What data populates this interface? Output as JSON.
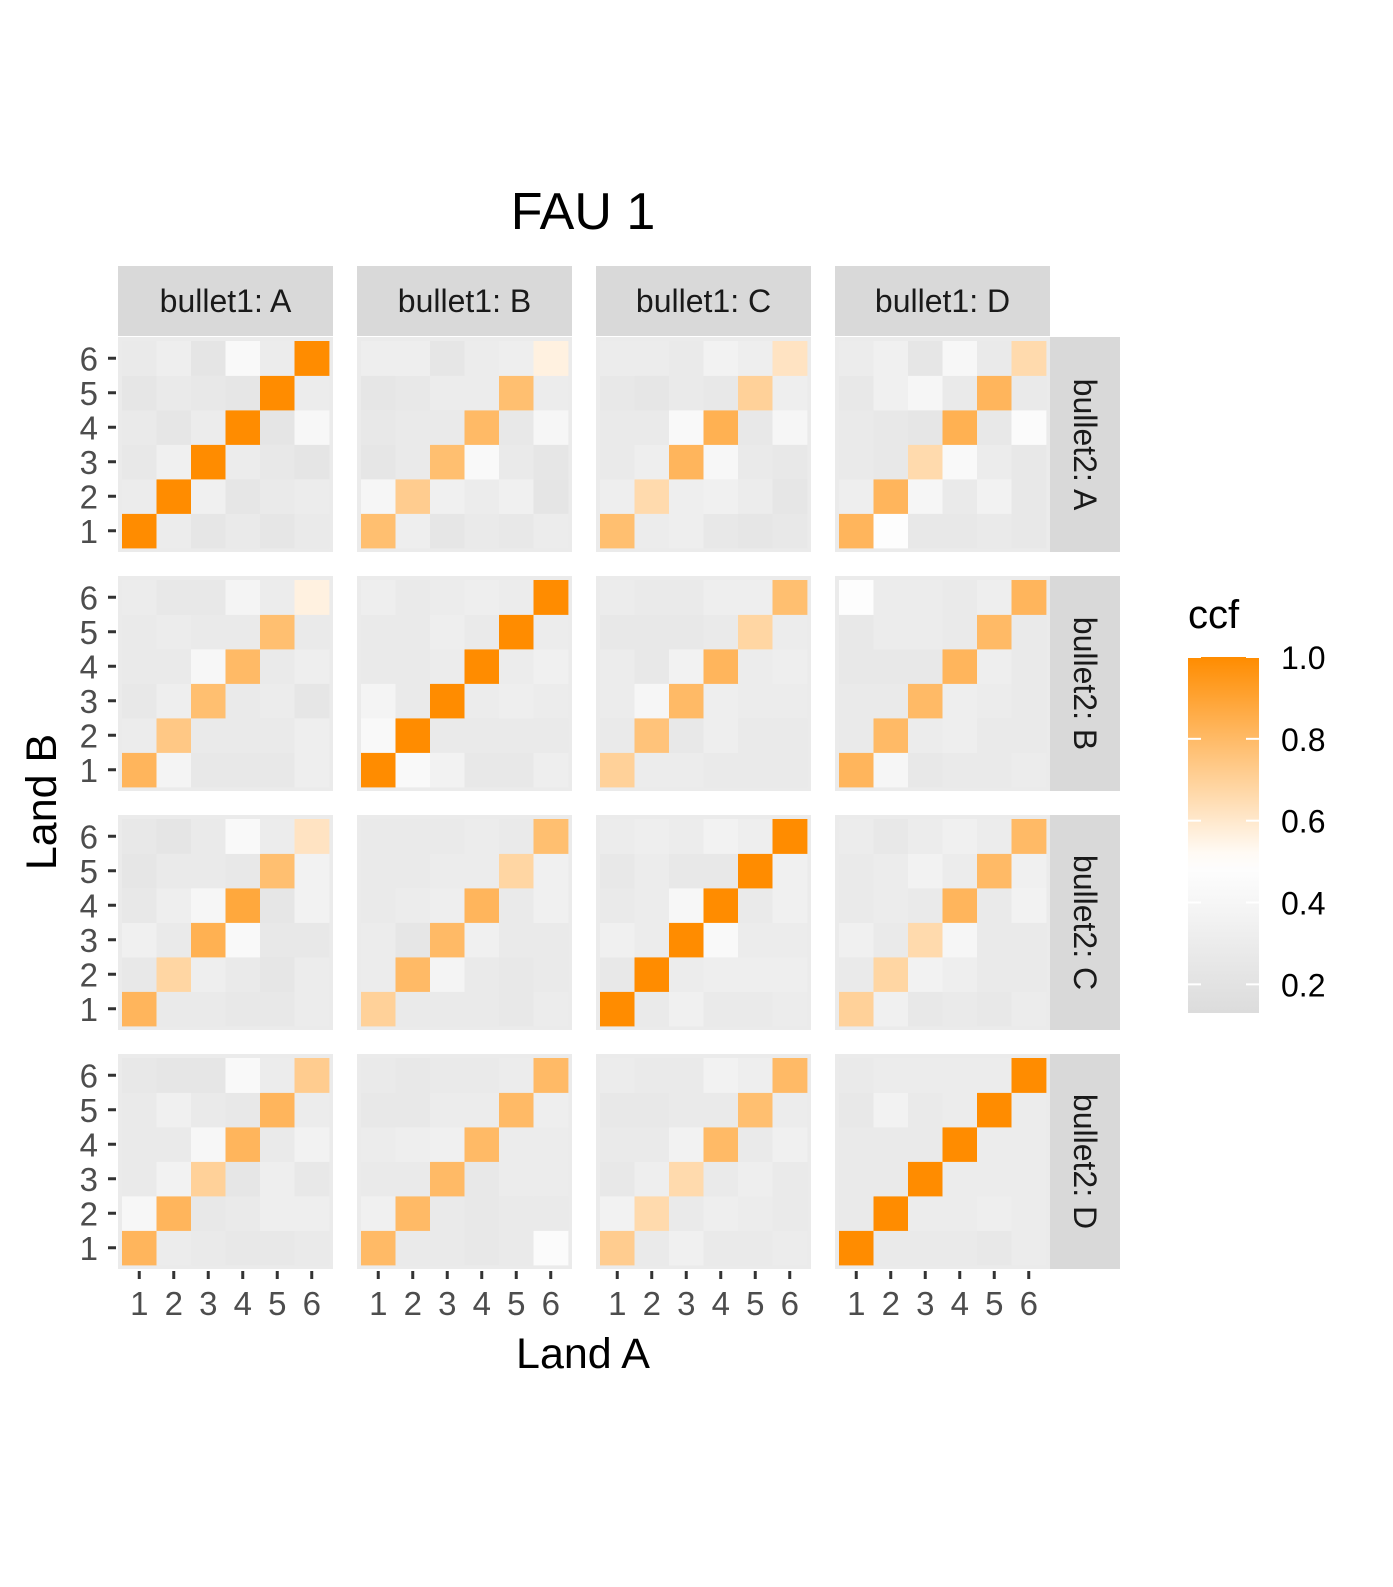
{
  "chart_data": {
    "type": "heatmap",
    "title": "FAU 1",
    "xlabel": "Land A",
    "ylabel": "Land B",
    "x_ticks": [
      "1",
      "2",
      "3",
      "4",
      "5",
      "6"
    ],
    "y_ticks": [
      "1",
      "2",
      "3",
      "4",
      "5",
      "6"
    ],
    "col_facets": [
      "bullet1: A",
      "bullet1: B",
      "bullet1: C",
      "bullet1: D"
    ],
    "row_facets": [
      "bullet2: A",
      "bullet2: B",
      "bullet2: C",
      "bullet2: D"
    ],
    "legend": {
      "title": "ccf",
      "ticks": [
        "0.2",
        "0.4",
        "0.6",
        "0.8",
        "1.0"
      ],
      "tick_values": [
        0.2,
        0.4,
        0.6,
        0.8,
        1.0
      ],
      "range": [
        0.13,
        1.0
      ],
      "position": "right",
      "colors": {
        "low": "#dcdcdc",
        "mid": "#ffffff",
        "high": "#ff8c00",
        "midpoint": 0.5
      }
    },
    "grid": false,
    "panels": [
      [
        [
          [
            1.0,
            0.3,
            0.24,
            0.28,
            0.24,
            0.28
          ],
          [
            0.3,
            1.0,
            0.34,
            0.24,
            0.28,
            0.3
          ],
          [
            0.26,
            0.34,
            1.0,
            0.3,
            0.26,
            0.22
          ],
          [
            0.28,
            0.24,
            0.3,
            1.0,
            0.22,
            0.42
          ],
          [
            0.24,
            0.28,
            0.26,
            0.24,
            1.0,
            0.3
          ],
          [
            0.28,
            0.32,
            0.22,
            0.44,
            0.3,
            1.0
          ]
        ],
        [
          [
            0.78,
            0.32,
            0.24,
            0.28,
            0.26,
            0.3
          ],
          [
            0.4,
            0.72,
            0.34,
            0.3,
            0.34,
            0.22
          ],
          [
            0.24,
            0.28,
            0.78,
            0.44,
            0.28,
            0.24
          ],
          [
            0.26,
            0.28,
            0.28,
            0.8,
            0.26,
            0.4
          ],
          [
            0.24,
            0.26,
            0.3,
            0.3,
            0.78,
            0.3
          ],
          [
            0.32,
            0.32,
            0.24,
            0.3,
            0.32,
            0.56
          ]
        ],
        [
          [
            0.78,
            0.3,
            0.32,
            0.26,
            0.24,
            0.26
          ],
          [
            0.32,
            0.66,
            0.32,
            0.34,
            0.3,
            0.24
          ],
          [
            0.28,
            0.32,
            0.82,
            0.42,
            0.28,
            0.26
          ],
          [
            0.28,
            0.28,
            0.44,
            0.84,
            0.26,
            0.4
          ],
          [
            0.26,
            0.24,
            0.28,
            0.26,
            0.7,
            0.32
          ],
          [
            0.3,
            0.3,
            0.28,
            0.36,
            0.32,
            0.62
          ]
        ],
        [
          [
            0.82,
            0.48,
            0.26,
            0.26,
            0.28,
            0.26
          ],
          [
            0.32,
            0.82,
            0.4,
            0.28,
            0.36,
            0.26
          ],
          [
            0.28,
            0.26,
            0.66,
            0.44,
            0.3,
            0.26
          ],
          [
            0.28,
            0.26,
            0.24,
            0.84,
            0.26,
            0.46
          ],
          [
            0.26,
            0.34,
            0.4,
            0.28,
            0.82,
            0.28
          ],
          [
            0.3,
            0.34,
            0.24,
            0.42,
            0.28,
            0.66
          ]
        ]
      ],
      [
        [
          [
            0.82,
            0.38,
            0.26,
            0.26,
            0.26,
            0.32
          ],
          [
            0.3,
            0.74,
            0.28,
            0.28,
            0.28,
            0.32
          ],
          [
            0.26,
            0.32,
            0.78,
            0.28,
            0.3,
            0.24
          ],
          [
            0.28,
            0.28,
            0.42,
            0.8,
            0.28,
            0.32
          ],
          [
            0.28,
            0.3,
            0.28,
            0.28,
            0.78,
            0.28
          ],
          [
            0.3,
            0.26,
            0.26,
            0.38,
            0.3,
            0.56
          ]
        ],
        [
          [
            1.0,
            0.44,
            0.36,
            0.26,
            0.26,
            0.32
          ],
          [
            0.44,
            1.0,
            0.28,
            0.28,
            0.28,
            0.28
          ],
          [
            0.38,
            0.28,
            1.0,
            0.3,
            0.32,
            0.3
          ],
          [
            0.28,
            0.28,
            0.3,
            1.0,
            0.3,
            0.34
          ],
          [
            0.28,
            0.28,
            0.32,
            0.28,
            1.0,
            0.3
          ],
          [
            0.32,
            0.28,
            0.3,
            0.32,
            0.3,
            1.0
          ]
        ],
        [
          [
            0.7,
            0.3,
            0.3,
            0.28,
            0.28,
            0.28
          ],
          [
            0.28,
            0.76,
            0.26,
            0.32,
            0.28,
            0.28
          ],
          [
            0.3,
            0.4,
            0.8,
            0.32,
            0.3,
            0.3
          ],
          [
            0.3,
            0.26,
            0.36,
            0.82,
            0.3,
            0.32
          ],
          [
            0.26,
            0.26,
            0.26,
            0.28,
            0.68,
            0.3
          ],
          [
            0.3,
            0.28,
            0.28,
            0.32,
            0.32,
            0.78
          ]
        ],
        [
          [
            0.82,
            0.4,
            0.26,
            0.28,
            0.28,
            0.3
          ],
          [
            0.28,
            0.8,
            0.3,
            0.32,
            0.28,
            0.28
          ],
          [
            0.28,
            0.28,
            0.8,
            0.32,
            0.3,
            0.28
          ],
          [
            0.26,
            0.26,
            0.26,
            0.82,
            0.32,
            0.28
          ],
          [
            0.26,
            0.3,
            0.3,
            0.28,
            0.8,
            0.28
          ],
          [
            0.48,
            0.3,
            0.3,
            0.28,
            0.32,
            0.82
          ]
        ]
      ],
      [
        [
          [
            0.82,
            0.28,
            0.28,
            0.26,
            0.26,
            0.3
          ],
          [
            0.26,
            0.68,
            0.32,
            0.28,
            0.24,
            0.3
          ],
          [
            0.34,
            0.28,
            0.84,
            0.44,
            0.26,
            0.26
          ],
          [
            0.26,
            0.32,
            0.4,
            0.88,
            0.24,
            0.36
          ],
          [
            0.24,
            0.28,
            0.28,
            0.26,
            0.78,
            0.36
          ],
          [
            0.26,
            0.22,
            0.28,
            0.44,
            0.3,
            0.62
          ]
        ],
        [
          [
            0.7,
            0.28,
            0.28,
            0.28,
            0.26,
            0.3
          ],
          [
            0.3,
            0.8,
            0.38,
            0.28,
            0.26,
            0.28
          ],
          [
            0.3,
            0.24,
            0.8,
            0.34,
            0.28,
            0.28
          ],
          [
            0.28,
            0.3,
            0.32,
            0.82,
            0.28,
            0.34
          ],
          [
            0.28,
            0.28,
            0.3,
            0.3,
            0.68,
            0.34
          ],
          [
            0.28,
            0.28,
            0.28,
            0.3,
            0.28,
            0.78
          ]
        ],
        [
          [
            1.0,
            0.28,
            0.34,
            0.28,
            0.28,
            0.3
          ],
          [
            0.26,
            1.0,
            0.3,
            0.32,
            0.32,
            0.32
          ],
          [
            0.34,
            0.3,
            1.0,
            0.44,
            0.3,
            0.3
          ],
          [
            0.28,
            0.3,
            0.42,
            1.0,
            0.28,
            0.34
          ],
          [
            0.26,
            0.3,
            0.26,
            0.26,
            1.0,
            0.34
          ],
          [
            0.3,
            0.32,
            0.3,
            0.36,
            0.32,
            1.0
          ]
        ],
        [
          [
            0.7,
            0.34,
            0.26,
            0.28,
            0.26,
            0.3
          ],
          [
            0.28,
            0.68,
            0.36,
            0.32,
            0.28,
            0.28
          ],
          [
            0.34,
            0.28,
            0.66,
            0.4,
            0.28,
            0.28
          ],
          [
            0.28,
            0.3,
            0.28,
            0.82,
            0.28,
            0.36
          ],
          [
            0.28,
            0.3,
            0.36,
            0.3,
            0.8,
            0.34
          ],
          [
            0.3,
            0.26,
            0.3,
            0.34,
            0.3,
            0.8
          ]
        ]
      ],
      [
        [
          [
            0.82,
            0.3,
            0.28,
            0.26,
            0.26,
            0.28
          ],
          [
            0.42,
            0.82,
            0.26,
            0.28,
            0.32,
            0.32
          ],
          [
            0.28,
            0.36,
            0.7,
            0.24,
            0.32,
            0.26
          ],
          [
            0.28,
            0.28,
            0.42,
            0.82,
            0.28,
            0.36
          ],
          [
            0.28,
            0.34,
            0.28,
            0.26,
            0.82,
            0.3
          ],
          [
            0.26,
            0.24,
            0.24,
            0.44,
            0.3,
            0.72
          ]
        ],
        [
          [
            0.8,
            0.28,
            0.28,
            0.26,
            0.28,
            0.46
          ],
          [
            0.34,
            0.8,
            0.28,
            0.26,
            0.28,
            0.28
          ],
          [
            0.28,
            0.28,
            0.8,
            0.26,
            0.3,
            0.3
          ],
          [
            0.3,
            0.32,
            0.34,
            0.8,
            0.3,
            0.3
          ],
          [
            0.26,
            0.26,
            0.3,
            0.3,
            0.8,
            0.32
          ],
          [
            0.28,
            0.26,
            0.28,
            0.28,
            0.3,
            0.8
          ]
        ],
        [
          [
            0.72,
            0.28,
            0.34,
            0.28,
            0.28,
            0.3
          ],
          [
            0.36,
            0.66,
            0.28,
            0.32,
            0.3,
            0.28
          ],
          [
            0.26,
            0.32,
            0.66,
            0.28,
            0.32,
            0.28
          ],
          [
            0.28,
            0.28,
            0.36,
            0.8,
            0.28,
            0.34
          ],
          [
            0.26,
            0.26,
            0.28,
            0.28,
            0.78,
            0.3
          ],
          [
            0.3,
            0.28,
            0.28,
            0.36,
            0.32,
            0.8
          ]
        ],
        [
          [
            1.0,
            0.28,
            0.28,
            0.28,
            0.26,
            0.3
          ],
          [
            0.28,
            1.0,
            0.3,
            0.3,
            0.32,
            0.3
          ],
          [
            0.28,
            0.28,
            1.0,
            0.3,
            0.3,
            0.3
          ],
          [
            0.28,
            0.28,
            0.28,
            1.0,
            0.3,
            0.3
          ],
          [
            0.26,
            0.36,
            0.28,
            0.3,
            1.0,
            0.3
          ],
          [
            0.28,
            0.3,
            0.3,
            0.3,
            0.3,
            1.0
          ]
        ]
      ]
    ]
  }
}
